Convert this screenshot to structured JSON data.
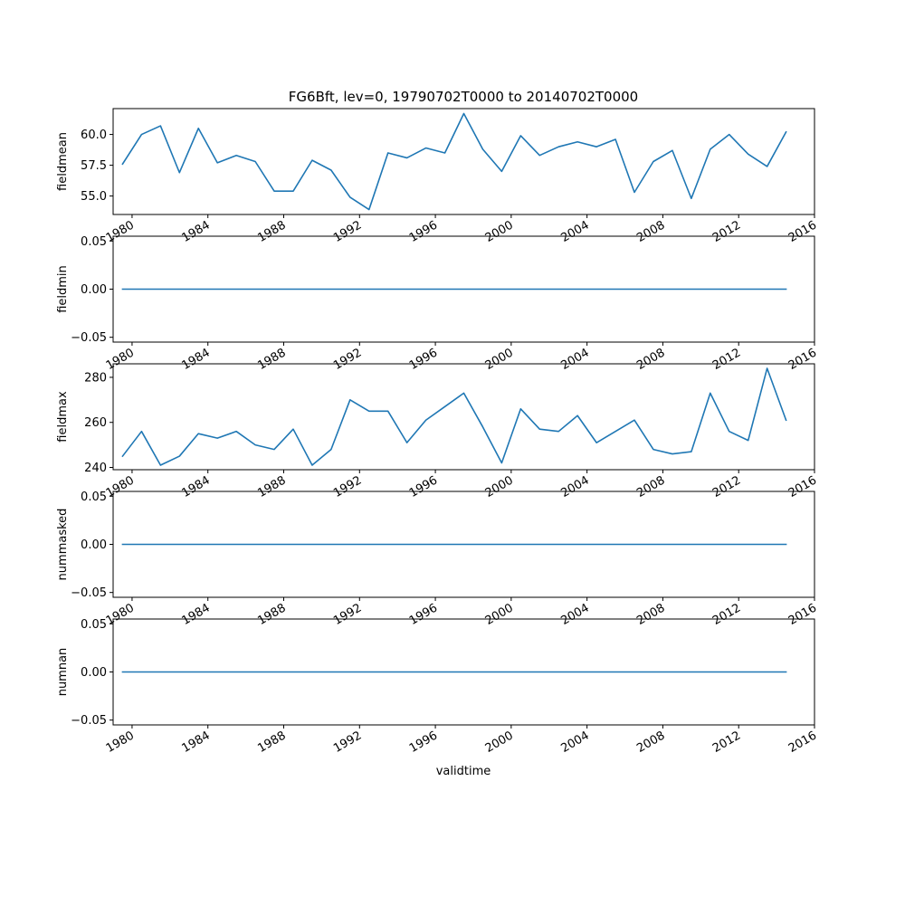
{
  "chart_data": {
    "type": "line",
    "title": "FG6Bft, lev=0, 19790702T0000 to 20140702T0000",
    "xlabel": "validtime",
    "x_ticks": [
      "1980",
      "1984",
      "1988",
      "1992",
      "1996",
      "2000",
      "2004",
      "2008",
      "2012",
      "2016"
    ],
    "xlim": [
      "1979-01-01",
      "2016-01-01"
    ],
    "x": [
      "1979-07-02",
      "1980-07-02",
      "1981-07-02",
      "1982-07-02",
      "1983-07-02",
      "1984-07-02",
      "1985-07-02",
      "1986-07-02",
      "1987-07-02",
      "1988-07-02",
      "1989-07-02",
      "1990-07-02",
      "1991-07-02",
      "1992-07-02",
      "1993-07-02",
      "1994-07-02",
      "1995-07-02",
      "1996-07-02",
      "1997-07-02",
      "1998-07-02",
      "1999-07-02",
      "2000-07-02",
      "2001-07-02",
      "2002-07-02",
      "2003-07-02",
      "2004-07-02",
      "2005-07-02",
      "2006-07-02",
      "2007-07-02",
      "2008-07-02",
      "2009-07-02",
      "2010-07-02",
      "2011-07-02",
      "2012-07-02",
      "2013-07-02",
      "2014-07-02"
    ],
    "line_color": "#1f77b4",
    "panels": [
      {
        "ylabel": "fieldmean",
        "ylim": [
          53.5,
          62.1
        ],
        "y_ticks": [
          "55.0",
          "57.5",
          "60.0"
        ],
        "y_tick_values": [
          55.0,
          57.5,
          60.0
        ],
        "values": [
          57.6,
          60.0,
          60.7,
          56.9,
          60.5,
          57.7,
          58.3,
          57.8,
          55.4,
          55.4,
          57.9,
          57.1,
          54.9,
          53.9,
          58.5,
          58.1,
          58.9,
          58.5,
          61.7,
          58.8,
          57.0,
          59.9,
          58.3,
          59.0,
          59.4,
          59.0,
          59.6,
          55.3,
          57.8,
          58.7,
          54.8,
          58.8,
          60.0,
          58.4,
          57.4,
          60.2
        ]
      },
      {
        "ylabel": "fieldmin",
        "ylim": [
          -0.055,
          0.055
        ],
        "y_ticks": [
          "−0.05",
          "0.00",
          "0.05"
        ],
        "y_tick_values": [
          -0.05,
          0.0,
          0.05
        ],
        "values": [
          0,
          0,
          0,
          0,
          0,
          0,
          0,
          0,
          0,
          0,
          0,
          0,
          0,
          0,
          0,
          0,
          0,
          0,
          0,
          0,
          0,
          0,
          0,
          0,
          0,
          0,
          0,
          0,
          0,
          0,
          0,
          0,
          0,
          0,
          0,
          0
        ]
      },
      {
        "ylabel": "fieldmax",
        "ylim": [
          239.0,
          286.0
        ],
        "y_ticks": [
          "240",
          "260",
          "280"
        ],
        "y_tick_values": [
          240,
          260,
          280
        ],
        "values": [
          245,
          256,
          241,
          245,
          255,
          253,
          256,
          250,
          248,
          257,
          241,
          248,
          270,
          265,
          265,
          251,
          261,
          267,
          273,
          258,
          242,
          266,
          257,
          256,
          263,
          251,
          256,
          261,
          248,
          246,
          247,
          273,
          256,
          252,
          284,
          261
        ]
      },
      {
        "ylabel": "nummasked",
        "ylim": [
          -0.055,
          0.055
        ],
        "y_ticks": [
          "−0.05",
          "0.00",
          "0.05"
        ],
        "y_tick_values": [
          -0.05,
          0.0,
          0.05
        ],
        "values": [
          0,
          0,
          0,
          0,
          0,
          0,
          0,
          0,
          0,
          0,
          0,
          0,
          0,
          0,
          0,
          0,
          0,
          0,
          0,
          0,
          0,
          0,
          0,
          0,
          0,
          0,
          0,
          0,
          0,
          0,
          0,
          0,
          0,
          0,
          0,
          0
        ]
      },
      {
        "ylabel": "numnan",
        "ylim": [
          -0.055,
          0.055
        ],
        "y_ticks": [
          "−0.05",
          "0.00",
          "0.05"
        ],
        "y_tick_values": [
          -0.05,
          0.0,
          0.05
        ],
        "values": [
          0,
          0,
          0,
          0,
          0,
          0,
          0,
          0,
          0,
          0,
          0,
          0,
          0,
          0,
          0,
          0,
          0,
          0,
          0,
          0,
          0,
          0,
          0,
          0,
          0,
          0,
          0,
          0,
          0,
          0,
          0,
          0,
          0,
          0,
          0,
          0
        ]
      }
    ]
  }
}
